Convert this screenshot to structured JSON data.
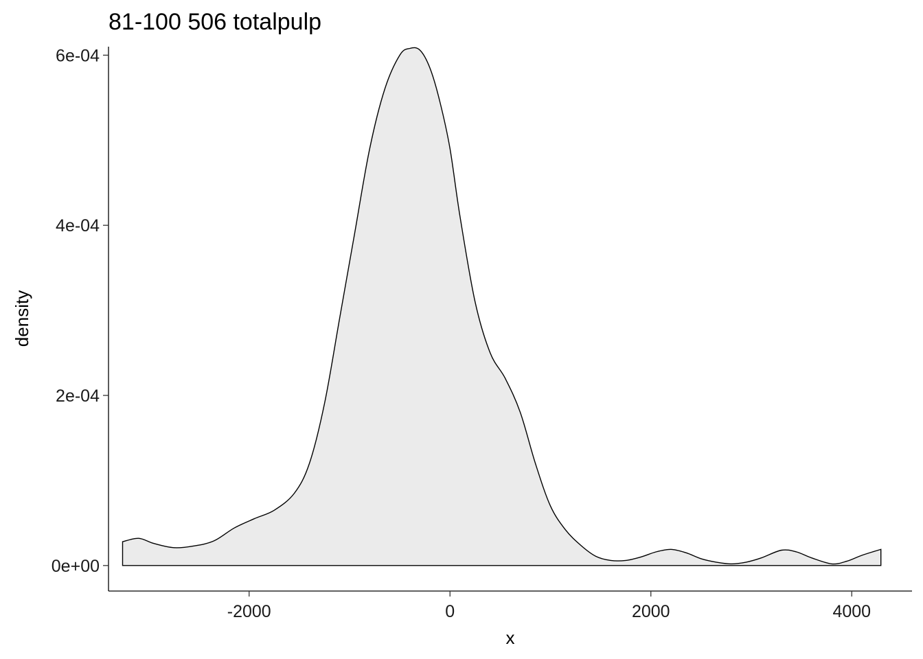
{
  "chart_data": {
    "type": "area",
    "title": "81-100 506 totalpulp",
    "xlabel": "x",
    "ylabel": "density",
    "xlim": [
      -3400,
      4600
    ],
    "ylim": [
      -3e-05,
      0.00061
    ],
    "x_ticks": [
      {
        "value": -2000,
        "label": "-2000"
      },
      {
        "value": 0,
        "label": "0"
      },
      {
        "value": 2000,
        "label": "2000"
      },
      {
        "value": 4000,
        "label": "4000"
      }
    ],
    "y_ticks": [
      {
        "value": 0,
        "label": "0e+00"
      },
      {
        "value": 0.0002,
        "label": "2e-04"
      },
      {
        "value": 0.0004,
        "label": "4e-04"
      },
      {
        "value": 0.0006,
        "label": "6e-04"
      }
    ],
    "grid": false,
    "legend": "none",
    "fill_color": "#ebebeb",
    "line_color": "#000000",
    "series": [
      {
        "x": [
          -3260,
          -3100,
          -2950,
          -2750,
          -2550,
          -2350,
          -2150,
          -1950,
          -1750,
          -1550,
          -1400,
          -1250,
          -1100,
          -950,
          -800,
          -650,
          -500,
          -400,
          -300,
          -200,
          -100,
          0,
          100,
          250,
          400,
          550,
          700,
          850,
          1000,
          1150,
          1300,
          1450,
          1600,
          1750,
          1900,
          2050,
          2200,
          2350,
          2500,
          2650,
          2800,
          2950,
          3100,
          3300,
          3450,
          3600,
          3800,
          3950,
          4100,
          4290
        ],
        "y": [
          2.8e-05,
          3.2e-05,
          2.6e-05,
          2.1e-05,
          2.3e-05,
          2.9e-05,
          4.4e-05,
          5.5e-05,
          6.5e-05,
          8.5e-05,
          0.00012,
          0.00019,
          0.00029,
          0.00039,
          0.00049,
          0.00056,
          0.0006,
          0.000608,
          0.000606,
          0.000585,
          0.000545,
          0.00049,
          0.00041,
          0.00031,
          0.00025,
          0.00022,
          0.00018,
          0.00012,
          7e-05,
          4.2e-05,
          2.4e-05,
          1.1e-05,
          6e-06,
          6e-06,
          1e-05,
          1.6e-05,
          1.9e-05,
          1.5e-05,
          8e-06,
          4e-06,
          2e-06,
          4e-06,
          9e-06,
          1.8e-05,
          1.6e-05,
          9e-06,
          2e-06,
          5e-06,
          1.2e-05,
          1.9e-05
        ]
      }
    ]
  }
}
